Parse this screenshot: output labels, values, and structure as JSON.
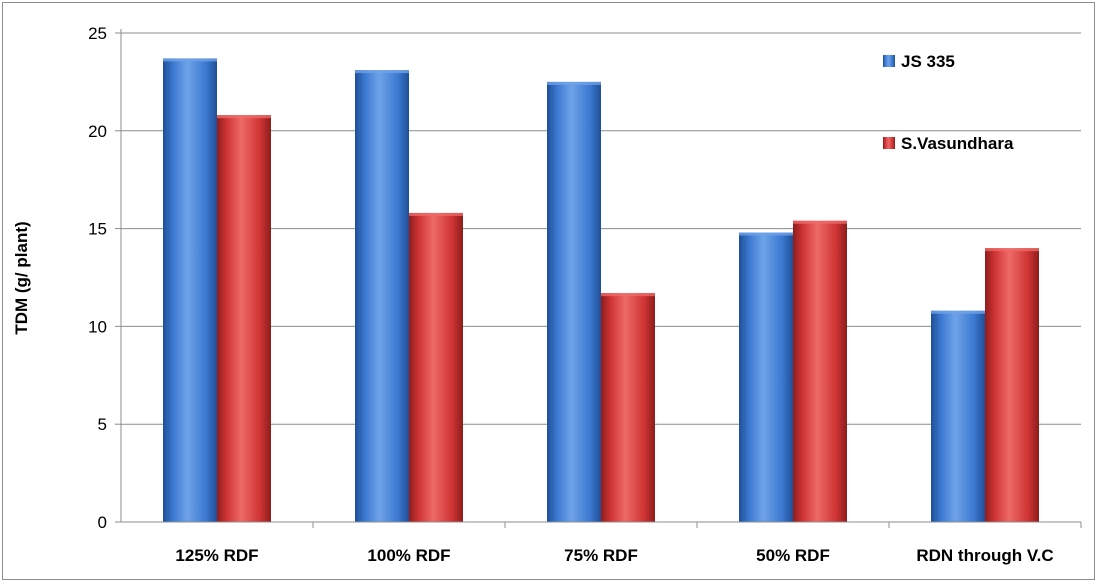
{
  "chart_data": {
    "type": "bar",
    "title": "",
    "xlabel": "",
    "ylabel": "TDM (g/ plant)",
    "categories": [
      "125% RDF",
      "100% RDF",
      "75% RDF",
      "50% RDF",
      "RDN through V.C"
    ],
    "series": [
      {
        "name": "JS 335",
        "values": [
          23.7,
          23.1,
          22.5,
          14.8,
          10.8
        ]
      },
      {
        "name": "S.Vasundhara",
        "values": [
          20.8,
          15.8,
          11.7,
          15.4,
          14.0
        ]
      }
    ],
    "yticks": [
      "0",
      "5",
      "10",
      "15",
      "20",
      "25"
    ],
    "ylim": [
      0,
      25
    ],
    "grid": true,
    "legend": "top-right",
    "colors": {
      "JS 335": {
        "light": "#6fa3e8",
        "base": "#3a78d0",
        "dark": "#1f4f96"
      },
      "S.Vasundhara": {
        "light": "#ee6a68",
        "base": "#cf3433",
        "dark": "#8e1c1c"
      }
    }
  }
}
